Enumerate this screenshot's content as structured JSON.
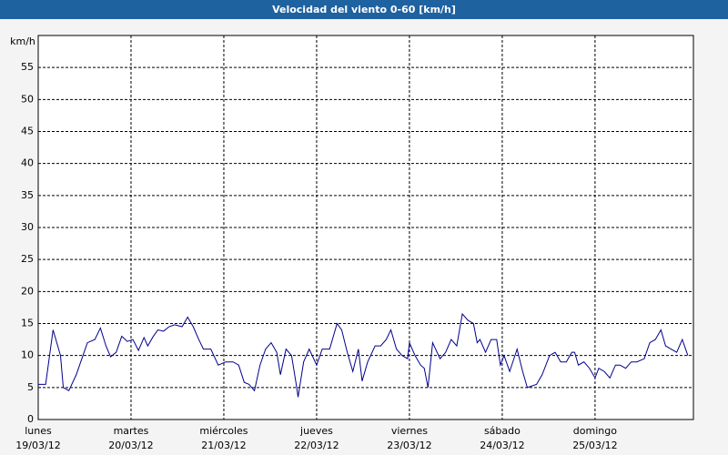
{
  "chart_data": {
    "type": "line",
    "title": "Velocidad del viento 0-60 [km/h]",
    "y_label": "km/h",
    "x": [
      0,
      0.08,
      0.16,
      0.24,
      0.27,
      0.33,
      0.41,
      0.47,
      0.53,
      0.61,
      0.67,
      0.73,
      0.78,
      0.84,
      0.9,
      0.96,
      1.02,
      1.08,
      1.14,
      1.18,
      1.24,
      1.29,
      1.35,
      1.41,
      1.47,
      1.55,
      1.61,
      1.67,
      1.73,
      1.78,
      1.86,
      1.94,
      2.02,
      2.1,
      2.16,
      2.22,
      2.27,
      2.33,
      2.39,
      2.45,
      2.51,
      2.57,
      2.61,
      2.67,
      2.73,
      2.78,
      2.8,
      2.86,
      2.92,
      3,
      3.06,
      3.14,
      3.22,
      3.27,
      3.33,
      3.39,
      3.45,
      3.49,
      3.55,
      3.63,
      3.69,
      3.75,
      3.8,
      3.86,
      3.92,
      3.98,
      4,
      4.06,
      4.12,
      4.16,
      4.2,
      4.25,
      4.33,
      4.39,
      4.45,
      4.51,
      4.57,
      4.63,
      4.69,
      4.73,
      4.76,
      4.82,
      4.88,
      4.94,
      4.98,
      5.02,
      5.08,
      5.16,
      5.22,
      5.27,
      5.37,
      5.43,
      5.51,
      5.57,
      5.63,
      5.69,
      5.75,
      5.78,
      5.82,
      5.88,
      5.94,
      6,
      6.04,
      6.1,
      6.16,
      6.22,
      6.27,
      6.33,
      6.39,
      6.45,
      6.53,
      6.59,
      6.65,
      6.71,
      6.76,
      6.82,
      6.88,
      6.94,
      7
    ],
    "series": [
      {
        "name": "Velocidad del viento",
        "color": "#00008b",
        "values": [
          5.5,
          5.5,
          14,
          10,
          5,
          4.5,
          7,
          9.5,
          12,
          12.5,
          14.3,
          11.5,
          9.8,
          10.5,
          13,
          12.2,
          12.5,
          10.8,
          12.8,
          11.5,
          13,
          14,
          13.8,
          14.5,
          14.8,
          14.5,
          16,
          14.5,
          12.5,
          11,
          11,
          8.5,
          9,
          9,
          8.5,
          5.8,
          5.5,
          4.5,
          8.5,
          11,
          12,
          10.5,
          7,
          11,
          10,
          5.5,
          3.5,
          9,
          11,
          8.5,
          11,
          11,
          15,
          14,
          10.5,
          7.5,
          11,
          6,
          9,
          11.5,
          11.5,
          12.5,
          14,
          11,
          10,
          9.5,
          12,
          10,
          8.5,
          8,
          5,
          12,
          9.5,
          10.5,
          12.5,
          11.5,
          16.5,
          15.5,
          15,
          12,
          12.5,
          10.5,
          12.5,
          12.5,
          8.5,
          10,
          7.5,
          11,
          7.5,
          5,
          5.5,
          7,
          10,
          10.5,
          9,
          9,
          10.5,
          10.5,
          8.5,
          9,
          8,
          6.5,
          8,
          7.5,
          6.5,
          8.5,
          8.5,
          8,
          9,
          9,
          9.5,
          12,
          12.5,
          14,
          11.5,
          11,
          10.5,
          12.5,
          10
        ]
      }
    ],
    "xlim": [
      0,
      7.06
    ],
    "xticks": [
      {
        "value": 0,
        "label": "lunes"
      },
      {
        "value": 1,
        "label": "martes"
      },
      {
        "value": 2,
        "label": "miércoles"
      },
      {
        "value": 3,
        "label": "jueves"
      },
      {
        "value": 4,
        "label": "viernes"
      },
      {
        "value": 5,
        "label": "sábado"
      },
      {
        "value": 6,
        "label": "domingo"
      }
    ],
    "xtick_dates": [
      "19/03/12",
      "20/03/12",
      "21/03/12",
      "22/03/12",
      "23/03/12",
      "24/03/12",
      "25/03/12"
    ],
    "ylim": [
      0,
      60
    ],
    "yticks": [
      0,
      5,
      10,
      15,
      20,
      25,
      30,
      35,
      40,
      45,
      50,
      55
    ],
    "grid": true
  }
}
